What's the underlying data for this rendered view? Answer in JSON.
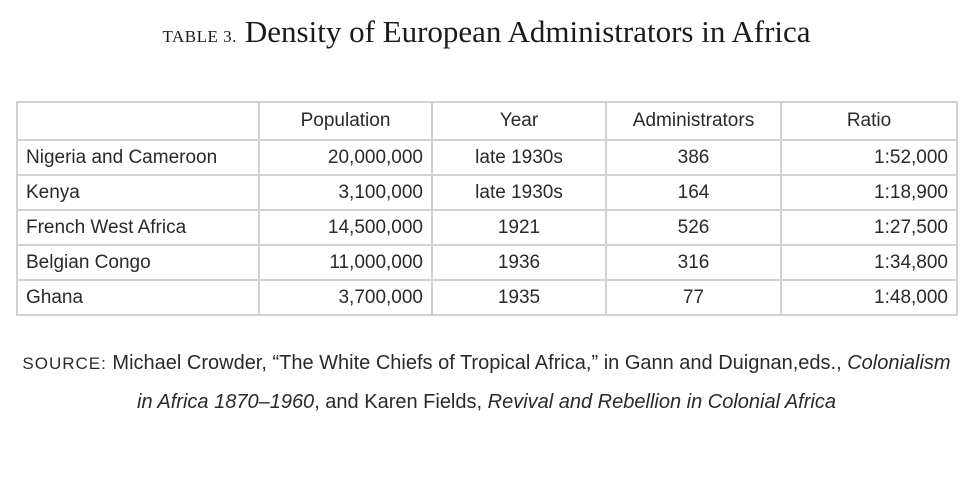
{
  "title": {
    "label": "TABLE 3.",
    "text": "Density of European Administrators in Africa"
  },
  "table": {
    "headers": [
      "",
      "Population",
      "Year",
      "Administrators",
      "Ratio"
    ],
    "rows": [
      [
        "Nigeria and Cameroon",
        "20,000,000",
        "late 1930s",
        "386",
        "1:52,000"
      ],
      [
        "Kenya",
        "3,100,000",
        "late 1930s",
        "164",
        "1:18,900"
      ],
      [
        "French West Africa",
        "14,500,000",
        "1921",
        "526",
        "1:27,500"
      ],
      [
        "Belgian Congo",
        "11,000,000",
        "1936",
        "316",
        "1:34,800"
      ],
      [
        "Ghana",
        "3,700,000",
        "1935",
        "77",
        "1:48,000"
      ]
    ]
  },
  "source": {
    "label": "SOURCE:",
    "text1": "Michael Crowder, “The White Chiefs of Tropical Africa,” in Gann and Duignan,eds., ",
    "italic1": "Colonialism in Africa 1870–1960",
    "text2": ", and Karen Fields, ",
    "italic2": "Revival and Rebellion in Colonial Africa"
  }
}
